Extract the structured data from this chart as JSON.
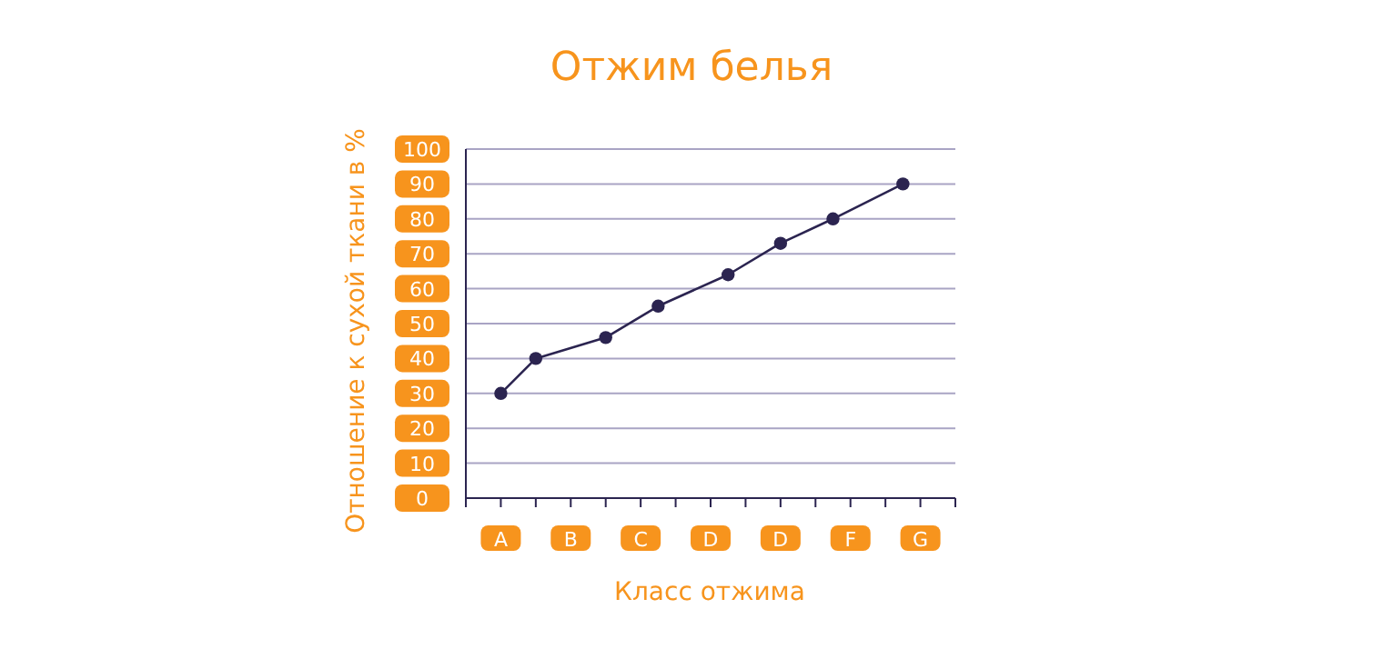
{
  "chart_data": {
    "type": "line",
    "title": "Отжим белья",
    "xlabel": "Класс отжима",
    "ylabel": "Отношение к сухой ткани в %",
    "categories": [
      null,
      null,
      "A",
      null,
      null,
      null,
      "B",
      null,
      null,
      null,
      "C",
      null,
      null,
      null,
      "D",
      null,
      null,
      null,
      "D",
      null,
      null,
      null,
      "F",
      null,
      null,
      null,
      "G",
      null,
      null
    ],
    "series": [
      {
        "color": "#2b2450",
        "values": [
          null,
          null,
          30,
          null,
          40,
          null,
          null,
          null,
          46,
          null,
          null,
          55,
          null,
          null,
          null,
          64,
          null,
          null,
          73,
          null,
          null,
          80,
          null,
          null,
          null,
          90,
          null,
          null,
          null
        ]
      }
    ],
    "ylim": [
      0,
      100
    ],
    "yticks": [
      0,
      10,
      20,
      30,
      40,
      50,
      60,
      70,
      80,
      90,
      100
    ],
    "grid": "y",
    "marker": "circle",
    "line_style": "solid"
  }
}
